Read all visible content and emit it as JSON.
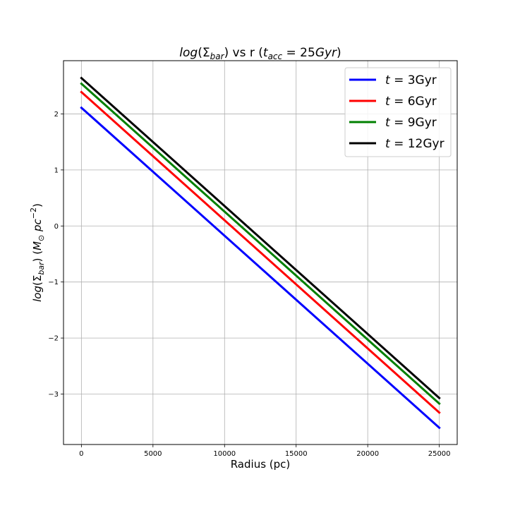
{
  "chart_data": {
    "type": "line",
    "title": "log(Σ_bar) vs r (t_acc = 25Gyr)",
    "xlabel": "Radius (pc)",
    "ylabel": "log(Σ_bar) (M_⊙ pc^-2)",
    "xlim": [
      -1250,
      26250
    ],
    "ylim": [
      -3.9,
      2.95
    ],
    "xticks": [
      0,
      5000,
      10000,
      15000,
      20000,
      25000
    ],
    "xtick_labels": [
      "0",
      "5000",
      "10000",
      "15000",
      "20000",
      "25000"
    ],
    "yticks": [
      -3,
      -2,
      -1,
      0,
      1,
      2
    ],
    "ytick_labels": [
      "−3",
      "−2",
      "−1",
      "0",
      "1",
      "2"
    ],
    "grid": true,
    "legend_position": "top-right",
    "series": [
      {
        "name": "t = 3Gyr",
        "color": "#0000ff",
        "x": [
          0,
          25000
        ],
        "y": [
          2.11,
          -3.6
        ]
      },
      {
        "name": "t = 6Gyr",
        "color": "#ff0000",
        "x": [
          0,
          25000
        ],
        "y": [
          2.39,
          -3.33
        ]
      },
      {
        "name": "t = 9Gyr",
        "color": "#008000",
        "x": [
          0,
          25000
        ],
        "y": [
          2.54,
          -3.17
        ]
      },
      {
        "name": "t = 12Gyr",
        "color": "#000000",
        "x": [
          0,
          25000
        ],
        "y": [
          2.64,
          -3.07
        ]
      }
    ]
  }
}
